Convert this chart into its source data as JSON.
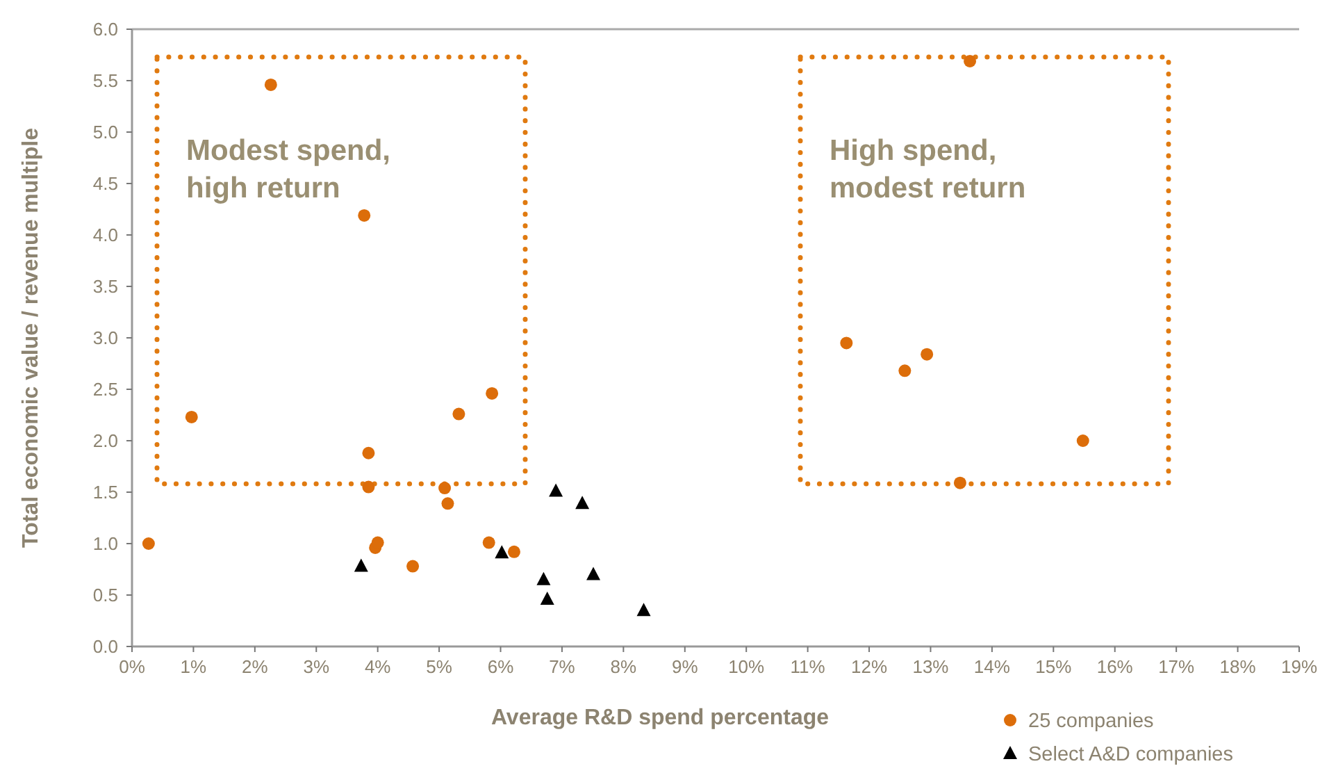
{
  "chart_data": {
    "type": "scatter",
    "xlabel": "Average R&D spend percentage",
    "ylabel": "Total economic value / revenue multiple",
    "xlim": [
      0,
      19
    ],
    "xticks": [
      {
        "value": 0,
        "label": "0%"
      },
      {
        "value": 1,
        "label": "1%"
      },
      {
        "value": 2,
        "label": "2%"
      },
      {
        "value": 3,
        "label": "3%"
      },
      {
        "value": 4,
        "label": "4%"
      },
      {
        "value": 5,
        "label": "5%"
      },
      {
        "value": 6,
        "label": "6%"
      },
      {
        "value": 7,
        "label": "7%"
      },
      {
        "value": 8,
        "label": "8%"
      },
      {
        "value": 9,
        "label": "9%"
      },
      {
        "value": 10,
        "label": "10%"
      },
      {
        "value": 11,
        "label": "11%"
      },
      {
        "value": 12,
        "label": "12%"
      },
      {
        "value": 13,
        "label": "13%"
      },
      {
        "value": 14,
        "label": "14%"
      },
      {
        "value": 15,
        "label": "15%"
      },
      {
        "value": 16,
        "label": "16%"
      },
      {
        "value": 17,
        "label": "17%"
      },
      {
        "value": 18,
        "label": "18%"
      },
      {
        "value": 19,
        "label": "19%"
      }
    ],
    "ylim": [
      0,
      6
    ],
    "yticks": [
      {
        "value": 0,
        "label": "0.0"
      },
      {
        "value": 0.5,
        "label": "0.5"
      },
      {
        "value": 1,
        "label": "1.0"
      },
      {
        "value": 1.5,
        "label": "1.5"
      },
      {
        "value": 2,
        "label": "2.0"
      },
      {
        "value": 2.5,
        "label": "2.5"
      },
      {
        "value": 3,
        "label": "3.0"
      },
      {
        "value": 3.5,
        "label": "3.5"
      },
      {
        "value": 4,
        "label": "4.0"
      },
      {
        "value": 4.5,
        "label": "4.5"
      },
      {
        "value": 5,
        "label": "5.0"
      },
      {
        "value": 5.5,
        "label": "5.5"
      },
      {
        "value": 6,
        "label": "6.0"
      }
    ],
    "grid": false,
    "legend": "bottom right",
    "annotations": [
      "Modest spend,\nhigh return",
      "High spend,\nmodest return"
    ],
    "series": [
      {
        "name": "25 companies",
        "color": "#dc6d0a",
        "marker": "circle",
        "x": [
          0.27,
          0.97,
          2.26,
          3.78,
          3.85,
          3.85,
          3.96,
          4.0,
          4.57,
          5.09,
          5.14,
          5.32,
          5.86,
          5.81,
          6.22,
          13.64,
          11.63,
          12.58,
          12.94,
          15.48,
          13.48
        ],
        "values": [
          1.0,
          2.23,
          5.46,
          4.19,
          1.88,
          1.55,
          0.96,
          1.01,
          0.78,
          1.54,
          1.39,
          2.26,
          2.46,
          1.01,
          0.92,
          5.69,
          2.95,
          2.68,
          2.84,
          2.0,
          1.59
        ]
      },
      {
        "name": "Select A&D companies",
        "color": "#000000",
        "marker": "triangle",
        "x": [
          3.73,
          6.02,
          6.7,
          6.76,
          6.9,
          7.33,
          7.51,
          8.33
        ],
        "values": [
          0.78,
          0.91,
          0.65,
          0.46,
          1.51,
          1.39,
          0.7,
          0.35
        ]
      }
    ]
  }
}
